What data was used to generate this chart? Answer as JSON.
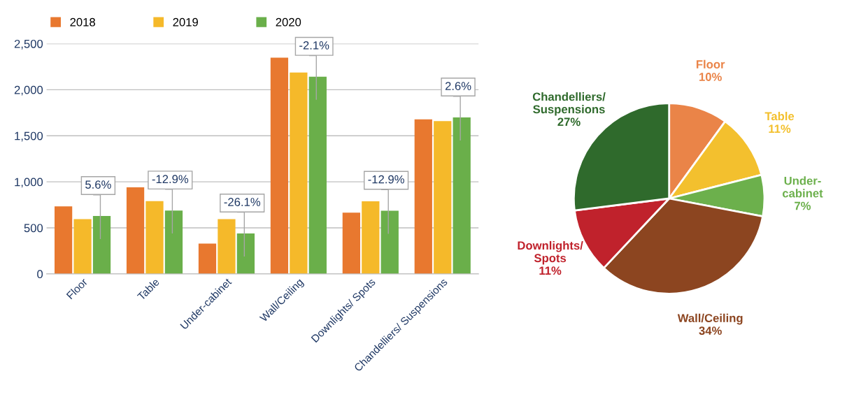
{
  "chart_data": [
    {
      "type": "bar",
      "categories": [
        "Floor",
        "Table",
        "Under-cabinet",
        "Wall/Ceiling",
        "Downlights/ Spots",
        "Chandelliers/ Suspensions"
      ],
      "series": [
        {
          "name": "2018",
          "color": "#e8782f",
          "values": [
            733,
            941,
            330,
            2349,
            666,
            1679
          ]
        },
        {
          "name": "2019",
          "color": "#f5b92a",
          "values": [
            595,
            790,
            595,
            2187,
            788,
            1660
          ]
        },
        {
          "name": "2020",
          "color": "#6aaf4a",
          "values": [
            629,
            689,
            440,
            2141,
            686,
            1699
          ]
        }
      ],
      "ylim": [
        0,
        2500
      ],
      "yticks": [
        {
          "value": 0,
          "label": "0"
        },
        {
          "value": 500,
          "label": "500"
        },
        {
          "value": 1000,
          "label": "1,000"
        },
        {
          "value": 1500,
          "label": "1,500"
        },
        {
          "value": 2000,
          "label": "2,000"
        },
        {
          "value": 2500,
          "label": "2,500"
        }
      ],
      "grid": "y",
      "legend": "top",
      "annotations": [
        "5.6%",
        "-12.9%",
        "-26.1%",
        "-2.1%",
        "-12.9%",
        "2.6%"
      ]
    },
    {
      "type": "pie",
      "categories": [
        "Floor",
        "Table",
        "Under-\ncabinet",
        "Wall/Ceiling",
        "Downlights/\nSpots",
        "Chandelliers/\nSuspensions"
      ],
      "values": [
        10,
        11,
        7,
        34,
        11,
        27
      ],
      "colors": [
        "#ea8448",
        "#f3c02e",
        "#6cb04c",
        "#8c4520",
        "#c0222c",
        "#2f6a2c"
      ],
      "value_labels": [
        "10%",
        "11%",
        "7%",
        "34%",
        "11%",
        "27%"
      ]
    }
  ]
}
